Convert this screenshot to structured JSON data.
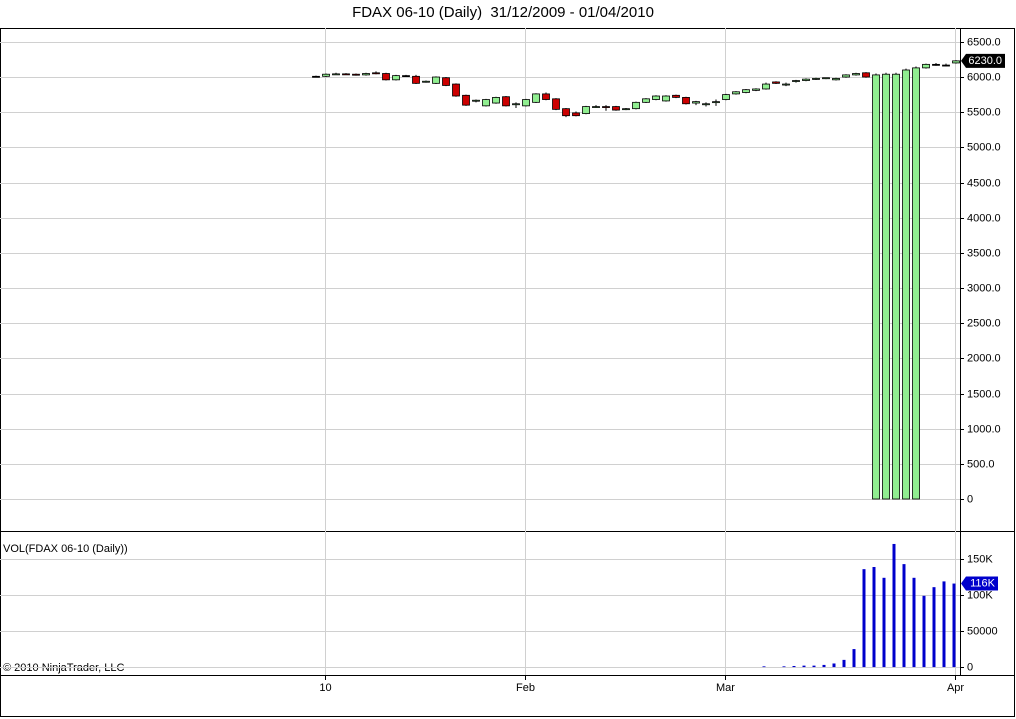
{
  "chart_data": [
    {
      "type": "candlestick",
      "title": "FDAX 06-10 (Daily)  31/12/2009 - 01/04/2010",
      "categories": [
        null,
        "10",
        null,
        null,
        null,
        null,
        null,
        null,
        null,
        null,
        null,
        null,
        null,
        null,
        null,
        null,
        null,
        null,
        null,
        null,
        null,
        "Feb",
        null,
        null,
        null,
        null,
        null,
        null,
        null,
        null,
        null,
        null,
        null,
        null,
        null,
        null,
        null,
        null,
        null,
        null,
        null,
        "Mar",
        null,
        null,
        null,
        null,
        null,
        null,
        null,
        null,
        null,
        null,
        null,
        null,
        null,
        null,
        null,
        null,
        null,
        null,
        null,
        null,
        null,
        null,
        "Apr"
      ],
      "open": [
        6010,
        6010,
        6040,
        6045,
        6040,
        6030,
        6060,
        6050,
        5960,
        6020,
        6010,
        5930,
        5910,
        5990,
        5900,
        5740,
        5660,
        5590,
        5630,
        5720,
        5610,
        5590,
        5640,
        5760,
        5690,
        5550,
        5490,
        5480,
        5570,
        5580,
        5580,
        5540,
        5550,
        5640,
        5680,
        5660,
        5740,
        5710,
        5630,
        5610,
        5640,
        5680,
        5760,
        5780,
        5810,
        5830,
        5930,
        5890,
        5940,
        5950,
        5970,
        5980,
        5960,
        6000,
        6030,
        6060,
        0,
        0,
        0,
        0,
        0,
        6130,
        6180,
        6170,
        6200
      ],
      "high": [
        6020,
        6050,
        6060,
        6055,
        6050,
        6060,
        6080,
        6060,
        6030,
        6030,
        6030,
        5950,
        6010,
        6000,
        5910,
        5750,
        5680,
        5690,
        5720,
        5730,
        5640,
        5690,
        5770,
        5780,
        5700,
        5560,
        5510,
        5590,
        5600,
        5600,
        5590,
        5560,
        5650,
        5700,
        5740,
        5740,
        5750,
        5720,
        5660,
        5640,
        5680,
        5760,
        5800,
        5830,
        5840,
        5920,
        5940,
        5920,
        5960,
        5980,
        5990,
        5990,
        5990,
        6040,
        6060,
        6070,
        6050,
        6060,
        6060,
        6120,
        6150,
        6190,
        6200,
        6190,
        6240
      ],
      "low": [
        6000,
        6000,
        6030,
        6030,
        6020,
        6020,
        6040,
        5950,
        5950,
        6010,
        5900,
        5920,
        5900,
        5870,
        5720,
        5590,
        5640,
        5580,
        5620,
        5580,
        5560,
        5580,
        5630,
        5670,
        5530,
        5430,
        5440,
        5470,
        5560,
        5520,
        5520,
        5530,
        5540,
        5630,
        5670,
        5650,
        5700,
        5610,
        5600,
        5580,
        5590,
        5670,
        5750,
        5770,
        5800,
        5820,
        5900,
        5870,
        5920,
        5940,
        5960,
        5970,
        5950,
        5990,
        6020,
        5990,
        0,
        0,
        0,
        0,
        0,
        6120,
        6160,
        6150,
        6190
      ],
      "close": [
        6010,
        6040,
        6045,
        6040,
        6030,
        6050,
        6050,
        5960,
        6020,
        6020,
        5910,
        5940,
        6000,
        5880,
        5730,
        5600,
        5670,
        5680,
        5710,
        5590,
        5620,
        5680,
        5760,
        5680,
        5540,
        5450,
        5450,
        5580,
        5580,
        5570,
        5530,
        5550,
        5640,
        5690,
        5730,
        5730,
        5710,
        5620,
        5650,
        5620,
        5650,
        5750,
        5790,
        5820,
        5830,
        5900,
        5910,
        5900,
        5950,
        5970,
        5980,
        5990,
        5980,
        6030,
        6050,
        6000,
        6030,
        6040,
        6040,
        6100,
        6130,
        6180,
        6180,
        6170,
        6230
      ],
      "close_labels": [
        null,
        null,
        null,
        null,
        null,
        null,
        null,
        null,
        null,
        null,
        null,
        null,
        null,
        null,
        null,
        null,
        null,
        null,
        null,
        null,
        null,
        null,
        null,
        null,
        null,
        null,
        null,
        null,
        null,
        null,
        null,
        null,
        null,
        null,
        null,
        null,
        null,
        null,
        null,
        null,
        null,
        null,
        null,
        null,
        null,
        null,
        null,
        null,
        null,
        null,
        null,
        null,
        null,
        null,
        null,
        null,
        null,
        null,
        null,
        null,
        null,
        null,
        null,
        null,
        "6230.0"
      ],
      "up_color": "#90ee90",
      "down_color": "#cc0000",
      "ylim": [
        -455,
        6697
      ],
      "yticks": [
        0,
        {
          "value": 500,
          "label": "500.0"
        },
        {
          "value": 1000,
          "label": "1000.0"
        },
        {
          "value": 1500,
          "label": "1500.0"
        },
        {
          "value": 2000,
          "label": "2000.0"
        },
        {
          "value": 2500,
          "label": "2500.0"
        },
        {
          "value": 3000,
          "label": "3000.0"
        },
        {
          "value": 3500,
          "label": "3500.0"
        },
        {
          "value": 4000,
          "label": "4000.0"
        },
        {
          "value": 4500,
          "label": "4500.0"
        },
        {
          "value": 5000,
          "label": "5000.0"
        },
        {
          "value": 5500,
          "label": "5500.0"
        },
        {
          "value": 6000,
          "label": "6000.0"
        },
        {
          "value": 6500,
          "label": "6500.0"
        }
      ],
      "grid": true
    },
    {
      "type": "bar",
      "label": "VOL(FDAX 06-10 (Daily))",
      "color": "#0000cc",
      "values": [
        null,
        null,
        null,
        null,
        null,
        null,
        null,
        null,
        null,
        null,
        null,
        null,
        null,
        null,
        null,
        null,
        null,
        null,
        null,
        null,
        null,
        null,
        null,
        null,
        null,
        null,
        null,
        null,
        null,
        null,
        null,
        null,
        null,
        null,
        null,
        null,
        null,
        null,
        null,
        null,
        null,
        null,
        null,
        null,
        null,
        1000,
        null,
        1000,
        1500,
        2000,
        2000,
        3000,
        5000,
        10000,
        25000,
        136000,
        139000,
        124000,
        171000,
        143000,
        124000,
        99000,
        111000,
        119000,
        116000
      ],
      "value_labels": [
        null,
        null,
        null,
        null,
        null,
        null,
        null,
        null,
        null,
        null,
        null,
        null,
        null,
        null,
        null,
        null,
        null,
        null,
        null,
        null,
        null,
        null,
        null,
        null,
        null,
        null,
        null,
        null,
        null,
        null,
        null,
        null,
        null,
        null,
        null,
        null,
        null,
        null,
        null,
        null,
        null,
        null,
        null,
        null,
        null,
        null,
        null,
        null,
        null,
        null,
        null,
        null,
        null,
        null,
        null,
        null,
        null,
        null,
        null,
        null,
        null,
        null,
        null,
        null,
        "116K"
      ],
      "ylim": [
        -11000,
        189000
      ],
      "yticks": [
        0,
        50000,
        {
          "value": 100000,
          "label": "100K"
        },
        {
          "value": 150000,
          "label": "150K"
        }
      ],
      "grid": true
    }
  ],
  "copyright": "© 2010 NinjaTrader, LLC"
}
